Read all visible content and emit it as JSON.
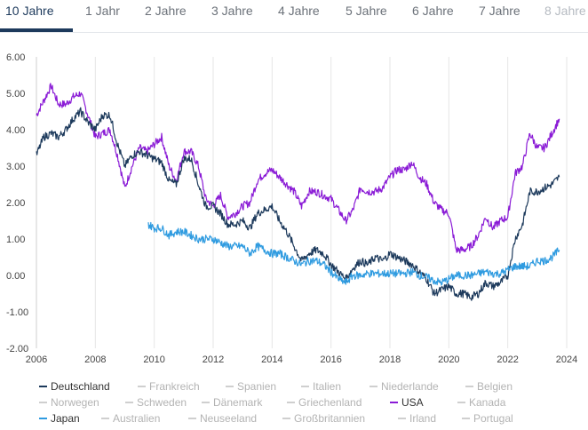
{
  "tabs": [
    {
      "label": "10 Jahre",
      "state": "active"
    },
    {
      "label": "1 Jahr",
      "state": "normal"
    },
    {
      "label": "2 Jahre",
      "state": "normal"
    },
    {
      "label": "3 Jahre",
      "state": "normal"
    },
    {
      "label": "4 Jahre",
      "state": "normal"
    },
    {
      "label": "5 Jahre",
      "state": "normal"
    },
    {
      "label": "6 Jahre",
      "state": "normal"
    },
    {
      "label": "7 Jahre",
      "state": "normal"
    },
    {
      "label": "8 Jahre",
      "state": "faded"
    }
  ],
  "legend": [
    {
      "name": "Deutschland",
      "enabled": true,
      "color": "#1d3a5c"
    },
    {
      "name": "Frankreich",
      "enabled": false,
      "color": "#cfcfcf"
    },
    {
      "name": "Spanien",
      "enabled": false,
      "color": "#cfcfcf"
    },
    {
      "name": "Italien",
      "enabled": false,
      "color": "#cfcfcf"
    },
    {
      "name": "Niederlande",
      "enabled": false,
      "color": "#cfcfcf"
    },
    {
      "name": "Belgien",
      "enabled": false,
      "color": "#cfcfcf"
    },
    {
      "name": "Norwegen",
      "enabled": false,
      "color": "#cfcfcf"
    },
    {
      "name": "Schweden",
      "enabled": false,
      "color": "#cfcfcf"
    },
    {
      "name": "Dänemark",
      "enabled": false,
      "color": "#cfcfcf"
    },
    {
      "name": "Griechenland",
      "enabled": false,
      "color": "#cfcfcf"
    },
    {
      "name": "USA",
      "enabled": true,
      "color": "#8a1bd6"
    },
    {
      "name": "Kanada",
      "enabled": false,
      "color": "#cfcfcf"
    },
    {
      "name": "Japan",
      "enabled": true,
      "color": "#2f9be0"
    },
    {
      "name": "Australien",
      "enabled": false,
      "color": "#cfcfcf"
    },
    {
      "name": "Neuseeland",
      "enabled": false,
      "color": "#cfcfcf"
    },
    {
      "name": "Großbritannien",
      "enabled": false,
      "color": "#cfcfcf"
    },
    {
      "name": "Irland",
      "enabled": false,
      "color": "#cfcfcf"
    },
    {
      "name": "Portugal",
      "enabled": false,
      "color": "#cfcfcf"
    }
  ],
  "chart_data": {
    "type": "line",
    "title": "",
    "xlabel": "",
    "ylabel": "",
    "xlim": [
      2006,
      2024
    ],
    "ylim": [
      -2,
      6
    ],
    "xticks": [
      2006,
      2008,
      2010,
      2012,
      2014,
      2016,
      2018,
      2020,
      2022,
      2024
    ],
    "yticks": [
      -2,
      -1,
      0,
      1,
      2,
      3,
      4,
      5,
      6
    ],
    "ytick_labels": [
      "-2.00",
      "-1.00",
      "0.00",
      "1.00",
      "2.00",
      "3.00",
      "4.00",
      "5.00",
      "6.00"
    ],
    "grid": "vertical",
    "legend_position": "bottom",
    "series": [
      {
        "name": "USA",
        "color": "#8a1bd6",
        "x": [
          2006.0,
          2006.25,
          2006.5,
          2006.75,
          2007.0,
          2007.25,
          2007.5,
          2007.75,
          2008.0,
          2008.25,
          2008.5,
          2008.75,
          2009.0,
          2009.25,
          2009.5,
          2009.75,
          2010.0,
          2010.25,
          2010.5,
          2010.75,
          2011.0,
          2011.25,
          2011.5,
          2011.75,
          2012.0,
          2012.25,
          2012.5,
          2012.75,
          2013.0,
          2013.25,
          2013.5,
          2013.75,
          2014.0,
          2014.25,
          2014.5,
          2014.75,
          2015.0,
          2015.25,
          2015.5,
          2015.75,
          2016.0,
          2016.25,
          2016.5,
          2016.75,
          2017.0,
          2017.25,
          2017.5,
          2017.75,
          2018.0,
          2018.25,
          2018.5,
          2018.75,
          2019.0,
          2019.25,
          2019.5,
          2019.75,
          2020.0,
          2020.25,
          2020.5,
          2020.75,
          2021.0,
          2021.25,
          2021.5,
          2021.75,
          2022.0,
          2022.25,
          2022.5,
          2022.75,
          2023.0,
          2023.25,
          2023.5,
          2023.75
        ],
        "y": [
          4.4,
          4.8,
          5.2,
          4.7,
          4.7,
          4.9,
          5.0,
          4.4,
          3.8,
          3.9,
          4.0,
          3.3,
          2.4,
          3.0,
          3.5,
          3.4,
          3.6,
          3.8,
          3.0,
          2.6,
          3.4,
          3.4,
          3.0,
          2.1,
          1.9,
          2.2,
          1.6,
          1.7,
          1.9,
          2.0,
          2.6,
          2.8,
          2.9,
          2.7,
          2.5,
          2.3,
          1.9,
          2.3,
          2.3,
          2.2,
          2.1,
          1.8,
          1.5,
          1.8,
          2.4,
          2.3,
          2.3,
          2.4,
          2.7,
          2.9,
          2.9,
          3.1,
          2.7,
          2.5,
          2.0,
          1.8,
          1.7,
          0.7,
          0.7,
          0.8,
          1.1,
          1.6,
          1.3,
          1.5,
          1.6,
          2.8,
          3.0,
          3.9,
          3.5,
          3.5,
          3.9,
          4.3
        ]
      },
      {
        "name": "Deutschland",
        "color": "#1d3a5c",
        "x": [
          2006.0,
          2006.25,
          2006.5,
          2006.75,
          2007.0,
          2007.25,
          2007.5,
          2007.75,
          2008.0,
          2008.25,
          2008.5,
          2008.75,
          2009.0,
          2009.25,
          2009.5,
          2009.75,
          2010.0,
          2010.25,
          2010.5,
          2010.75,
          2011.0,
          2011.25,
          2011.5,
          2011.75,
          2012.0,
          2012.25,
          2012.5,
          2012.75,
          2013.0,
          2013.25,
          2013.5,
          2013.75,
          2014.0,
          2014.25,
          2014.5,
          2014.75,
          2015.0,
          2015.25,
          2015.5,
          2015.75,
          2016.0,
          2016.25,
          2016.5,
          2016.75,
          2017.0,
          2017.25,
          2017.5,
          2017.75,
          2018.0,
          2018.25,
          2018.5,
          2018.75,
          2019.0,
          2019.25,
          2019.5,
          2019.75,
          2020.0,
          2020.25,
          2020.5,
          2020.75,
          2021.0,
          2021.25,
          2021.5,
          2021.75,
          2022.0,
          2022.25,
          2022.5,
          2022.75,
          2023.0,
          2023.25,
          2023.5,
          2023.75
        ],
        "y": [
          3.3,
          3.8,
          3.9,
          3.8,
          4.0,
          4.3,
          4.5,
          4.2,
          4.0,
          4.4,
          4.4,
          3.6,
          3.0,
          3.3,
          3.4,
          3.3,
          3.2,
          3.1,
          2.6,
          2.5,
          3.2,
          3.2,
          2.5,
          1.9,
          1.9,
          1.7,
          1.4,
          1.4,
          1.5,
          1.3,
          1.7,
          1.8,
          1.9,
          1.5,
          1.2,
          0.8,
          0.4,
          0.6,
          0.7,
          0.6,
          0.3,
          0.1,
          -0.1,
          0.2,
          0.4,
          0.3,
          0.5,
          0.4,
          0.6,
          0.5,
          0.4,
          0.3,
          0.1,
          -0.1,
          -0.5,
          -0.4,
          -0.3,
          -0.5,
          -0.5,
          -0.6,
          -0.5,
          -0.2,
          -0.3,
          -0.2,
          0.0,
          1.0,
          1.4,
          2.3,
          2.3,
          2.4,
          2.5,
          2.7
        ]
      },
      {
        "name": "Japan",
        "color": "#2f9be0",
        "x": [
          2009.8,
          2010.0,
          2010.25,
          2010.5,
          2010.75,
          2011.0,
          2011.25,
          2011.5,
          2011.75,
          2012.0,
          2012.25,
          2012.5,
          2012.75,
          2013.0,
          2013.25,
          2013.5,
          2013.75,
          2014.0,
          2014.25,
          2014.5,
          2014.75,
          2015.0,
          2015.25,
          2015.5,
          2015.75,
          2016.0,
          2016.25,
          2016.5,
          2016.75,
          2017.0,
          2017.25,
          2017.5,
          2017.75,
          2018.0,
          2018.25,
          2018.5,
          2018.75,
          2019.0,
          2019.25,
          2019.5,
          2019.75,
          2020.0,
          2020.25,
          2020.5,
          2020.75,
          2021.0,
          2021.25,
          2021.5,
          2021.75,
          2022.0,
          2022.25,
          2022.5,
          2022.75,
          2023.0,
          2023.25,
          2023.5,
          2023.75
        ],
        "y": [
          1.4,
          1.3,
          1.3,
          1.1,
          1.2,
          1.2,
          1.1,
          1.0,
          1.0,
          1.0,
          0.9,
          0.8,
          0.8,
          0.8,
          0.6,
          0.8,
          0.7,
          0.6,
          0.6,
          0.5,
          0.4,
          0.3,
          0.4,
          0.4,
          0.3,
          0.1,
          -0.1,
          -0.2,
          0.0,
          0.0,
          0.05,
          0.05,
          0.05,
          0.05,
          0.05,
          0.05,
          0.1,
          0.0,
          -0.05,
          -0.15,
          -0.2,
          -0.1,
          0.0,
          0.0,
          0.0,
          0.05,
          0.1,
          0.05,
          0.05,
          0.15,
          0.25,
          0.25,
          0.25,
          0.4,
          0.4,
          0.5,
          0.7
        ]
      }
    ]
  }
}
